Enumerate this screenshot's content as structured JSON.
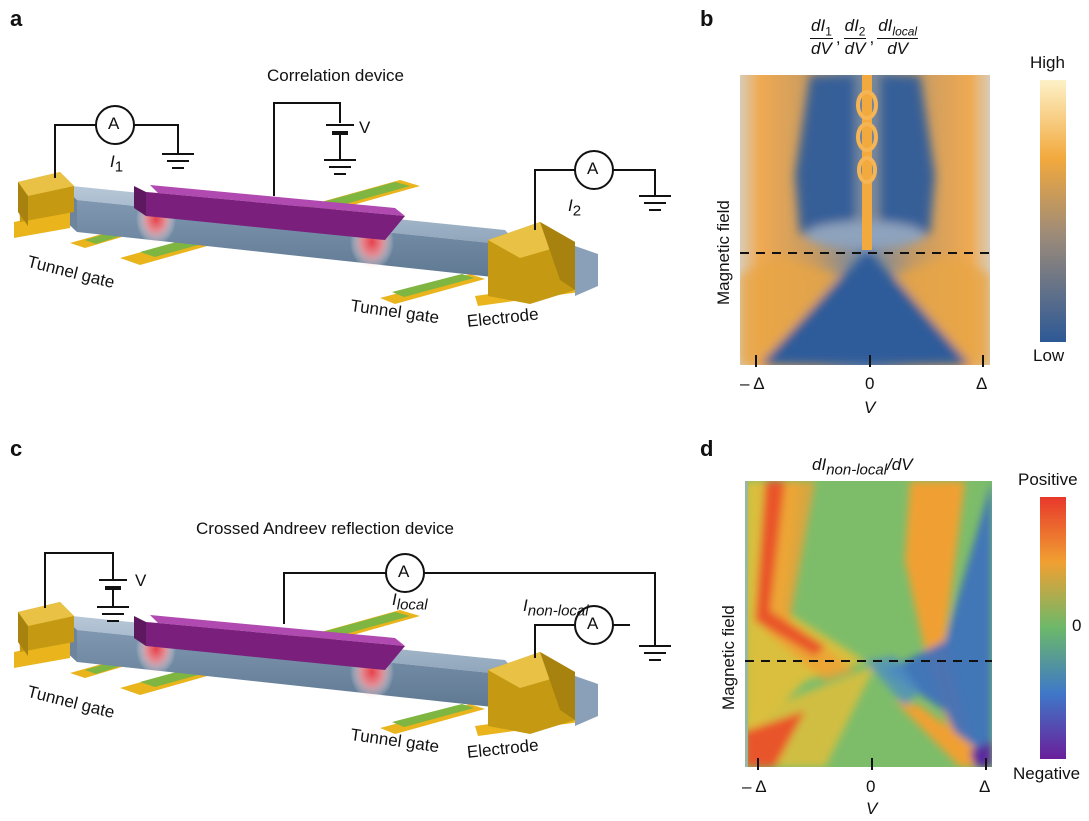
{
  "panels": {
    "a": {
      "letter": "a",
      "title": "Correlation device",
      "ammeter_symbol": "A",
      "current_left": "I",
      "current_left_sub": "1",
      "current_right": "I",
      "current_right_sub": "2",
      "voltage": "V",
      "tunnel_gate_left": "Tunnel gate",
      "tunnel_gate_right": "Tunnel gate",
      "electrode": "Electrode"
    },
    "b": {
      "letter": "b",
      "title_parts": [
        "dI",
        "1",
        "dV",
        "dI",
        "2",
        "dV",
        "dI",
        "local",
        "dV"
      ],
      "ylabel": "Magnetic field",
      "xlabel": "V",
      "xticks": [
        "– Δ",
        "0",
        "Δ"
      ],
      "colorbar_high": "High",
      "colorbar_low": "Low"
    },
    "c": {
      "letter": "c",
      "title": "Crossed Andreev reflection device",
      "ammeter_symbol": "A",
      "voltage": "V",
      "current_local": "I",
      "current_local_sub": "local",
      "current_nonlocal": "I",
      "current_nonlocal_sub": "non-local",
      "tunnel_gate_left": "Tunnel gate",
      "tunnel_gate_right": "Tunnel gate",
      "electrode": "Electrode"
    },
    "d": {
      "letter": "d",
      "title": "dI",
      "title_sub": "non-local",
      "title_suffix": "/dV",
      "ylabel": "Magnetic field",
      "xlabel": "V",
      "xticks": [
        "– Δ",
        "0",
        "Δ"
      ],
      "colorbar_positive": "Positive",
      "colorbar_zero": "0",
      "colorbar_negative": "Negative"
    }
  },
  "colors": {
    "gold": "#e9b41c",
    "gold_dark": "#a8820e",
    "purple": "#8c2a8c",
    "wire": "#7e95ad",
    "gate_green": "#7fb541",
    "map_blue": "#2f5c9a",
    "map_orange": "#f2a93d"
  }
}
